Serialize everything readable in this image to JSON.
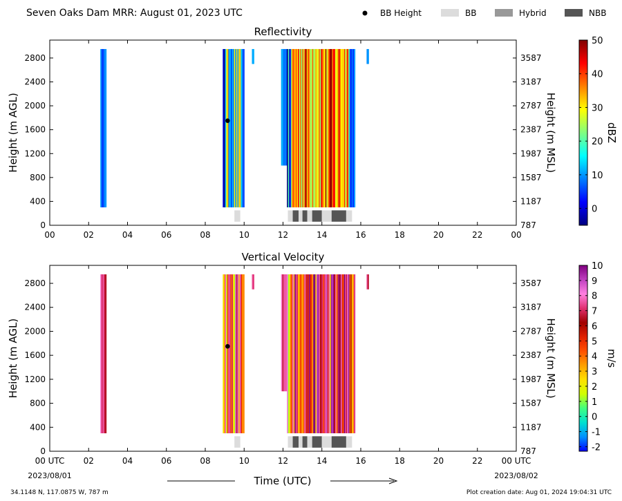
{
  "header": {
    "title": "Seven Oaks Dam MRR:  August 01, 2023 UTC",
    "legend": [
      {
        "label": "BB Height",
        "kind": "marker",
        "color": "#000000"
      },
      {
        "label": "BB",
        "kind": "patch",
        "color": "#dcdcdc"
      },
      {
        "label": "Hybrid",
        "kind": "patch",
        "color": "#999999"
      },
      {
        "label": "NBB",
        "kind": "patch",
        "color": "#555555"
      }
    ]
  },
  "footer": {
    "location": "34.1148 N, 117.0875 W, 787 m",
    "creation": "Plot creation date: Aug 01, 2024 19:04:31 UTC",
    "xlabel": "Time (UTC)",
    "start_date": "2023/08/01",
    "end_date": "2023/08/02"
  },
  "chart_data": [
    {
      "type": "heatmap",
      "title": "Reflectivity",
      "ylabel": "Height (m AGL)",
      "y2label": "Height (m MSL)",
      "xlim": [
        0,
        24
      ],
      "ylim": [
        0,
        3100
      ],
      "x_ticks": [
        "00",
        "02",
        "04",
        "06",
        "08",
        "10",
        "12",
        "14",
        "16",
        "18",
        "20",
        "22",
        "00"
      ],
      "y_ticks": [
        0,
        400,
        800,
        1200,
        1600,
        2000,
        2400,
        2800
      ],
      "y2_ticks": [
        "787",
        "1187",
        "1587",
        "1987",
        "2387",
        "2787",
        "3187",
        "3587"
      ],
      "colorbar": {
        "label": "dBZ",
        "range": [
          -5,
          50
        ],
        "ticks": [
          0,
          10,
          20,
          30,
          40,
          50
        ],
        "colors": [
          "#000080",
          "#0000ff",
          "#0080ff",
          "#00ffff",
          "#80ff80",
          "#ffff00",
          "#ff8000",
          "#ff0000",
          "#800000"
        ]
      },
      "echo_regions": [
        {
          "t_start": 2.6,
          "t_end": 2.9,
          "h_top": 2950,
          "h_bottom": 300
        },
        {
          "t_start": 8.9,
          "t_end": 10.0,
          "h_top": 2950,
          "h_bottom": 300
        },
        {
          "t_start": 10.4,
          "t_end": 10.5,
          "h_top": 2950,
          "h_bottom": 2700
        },
        {
          "t_start": 11.9,
          "t_end": 12.2,
          "h_top": 2950,
          "h_bottom": 1000
        },
        {
          "t_start": 12.2,
          "t_end": 15.7,
          "h_top": 2950,
          "h_bottom": 300
        },
        {
          "t_start": 16.3,
          "t_end": 16.4,
          "h_top": 2950,
          "h_bottom": 2700
        }
      ],
      "bb_height": [
        {
          "time": 9.15,
          "height": 1750
        }
      ],
      "bb_classes": [
        {
          "t_start": 9.5,
          "t_end": 9.8,
          "class": "BB"
        },
        {
          "t_start": 12.25,
          "t_end": 12.5,
          "class": "BB"
        },
        {
          "t_start": 12.5,
          "t_end": 12.8,
          "class": "NBB"
        },
        {
          "t_start": 12.8,
          "t_end": 13.0,
          "class": "BB"
        },
        {
          "t_start": 13.0,
          "t_end": 13.25,
          "class": "NBB"
        },
        {
          "t_start": 13.25,
          "t_end": 13.5,
          "class": "BB"
        },
        {
          "t_start": 13.5,
          "t_end": 14.0,
          "class": "NBB"
        },
        {
          "t_start": 14.0,
          "t_end": 14.5,
          "class": "BB"
        },
        {
          "t_start": 14.5,
          "t_end": 15.25,
          "class": "NBB"
        },
        {
          "t_start": 15.25,
          "t_end": 15.55,
          "class": "BB"
        }
      ]
    },
    {
      "type": "heatmap",
      "title": "Vertical Velocity",
      "ylabel": "Height (m AGL)",
      "y2label": "Height (m MSL)",
      "xlim": [
        0,
        24
      ],
      "ylim": [
        0,
        3100
      ],
      "x_ticks": [
        "00 UTC",
        "02",
        "04",
        "06",
        "08",
        "10",
        "12",
        "14",
        "16",
        "18",
        "20",
        "22",
        "00 UTC"
      ],
      "y_ticks": [
        0,
        400,
        800,
        1200,
        1600,
        2000,
        2400,
        2800
      ],
      "y2_ticks": [
        "787",
        "1187",
        "1587",
        "1987",
        "2387",
        "2787",
        "3187",
        "3587"
      ],
      "colorbar": {
        "label": "m/s",
        "range": [
          -2.3,
          10
        ],
        "ticks": [
          -2,
          -1,
          0,
          1,
          2,
          3,
          4,
          5,
          6,
          7,
          8,
          9,
          10
        ],
        "colors": [
          "#0000ff",
          "#0090ff",
          "#00e0d0",
          "#40ff80",
          "#d0ff00",
          "#ffe000",
          "#ffa000",
          "#ff5000",
          "#e02000",
          "#a00000",
          "#e03070",
          "#ff80e0",
          "#c040c0",
          "#800080"
        ]
      },
      "echo_regions": [
        {
          "t_start": 2.6,
          "t_end": 2.9,
          "h_top": 2950,
          "h_bottom": 300
        },
        {
          "t_start": 8.9,
          "t_end": 10.0,
          "h_top": 2950,
          "h_bottom": 300
        },
        {
          "t_start": 10.4,
          "t_end": 10.5,
          "h_top": 2950,
          "h_bottom": 2700
        },
        {
          "t_start": 11.9,
          "t_end": 12.2,
          "h_top": 2950,
          "h_bottom": 1000
        },
        {
          "t_start": 12.2,
          "t_end": 15.7,
          "h_top": 2950,
          "h_bottom": 300
        },
        {
          "t_start": 16.3,
          "t_end": 16.4,
          "h_top": 2950,
          "h_bottom": 2700
        }
      ],
      "bb_height": [
        {
          "time": 9.15,
          "height": 1750
        }
      ],
      "bb_classes": [
        {
          "t_start": 9.5,
          "t_end": 9.8,
          "class": "BB"
        },
        {
          "t_start": 12.25,
          "t_end": 12.5,
          "class": "BB"
        },
        {
          "t_start": 12.5,
          "t_end": 12.8,
          "class": "NBB"
        },
        {
          "t_start": 12.8,
          "t_end": 13.0,
          "class": "BB"
        },
        {
          "t_start": 13.0,
          "t_end": 13.25,
          "class": "NBB"
        },
        {
          "t_start": 13.25,
          "t_end": 13.5,
          "class": "BB"
        },
        {
          "t_start": 13.5,
          "t_end": 14.0,
          "class": "NBB"
        },
        {
          "t_start": 14.0,
          "t_end": 14.5,
          "class": "BB"
        },
        {
          "t_start": 14.5,
          "t_end": 15.25,
          "class": "NBB"
        },
        {
          "t_start": 15.25,
          "t_end": 15.55,
          "class": "BB"
        }
      ]
    }
  ]
}
